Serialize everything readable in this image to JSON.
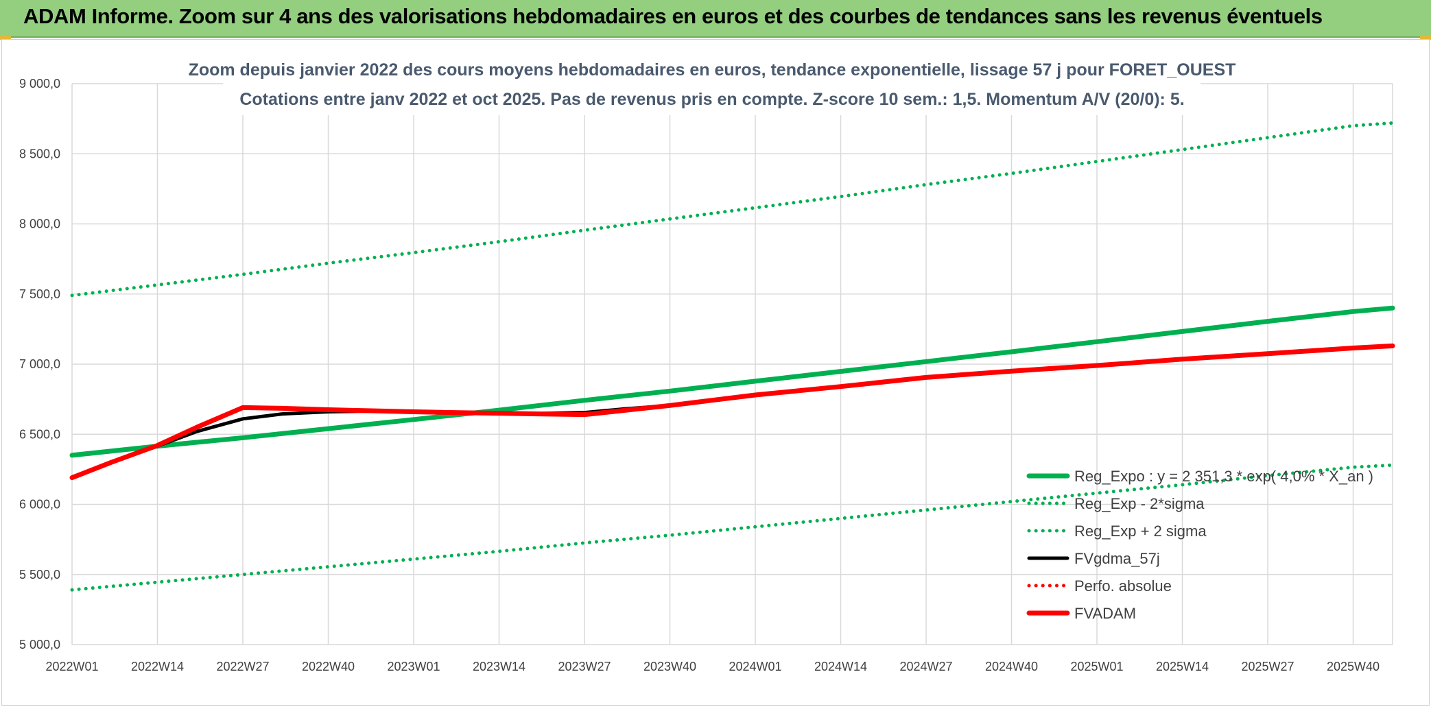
{
  "banner": {
    "title": "ADAM Informe. Zoom sur 4 ans des valorisations hebdomadaires en euros et des courbes de tendances sans les revenus éventuels"
  },
  "chart_data": {
    "type": "line",
    "title": "Zoom depuis janvier 2022 des cours moyens hebdomadaires en euros, tendance exponentielle, lissage 57 j pour FORET_OUEST",
    "subtitle": "Cotations entre janv 2022 et oct 2025. Pas de revenus pris en compte. Z-score 10 sem.: 1,5. Momentum A/V (20/0): 5.",
    "xlabel": "",
    "ylabel": "",
    "ylim": [
      5000,
      9000
    ],
    "y_ticks": [
      "5 000,0",
      "5 500,0",
      "6 000,0",
      "6 500,0",
      "7 000,0",
      "7 500,0",
      "8 000,0",
      "8 500,0",
      "9 000,0"
    ],
    "y_tick_values": [
      5000,
      5500,
      6000,
      6500,
      7000,
      7500,
      8000,
      8500,
      9000
    ],
    "categories": [
      "2022W01",
      "2022W14",
      "2022W27",
      "2022W40",
      "2023W01",
      "2023W14",
      "2023W27",
      "2023W40",
      "2024W01",
      "2024W14",
      "2024W27",
      "2024W40",
      "2025W01",
      "2025W14",
      "2025W27",
      "2025W40"
    ],
    "x_last": "2025W46",
    "grid": true,
    "legend_position": "bottom-right",
    "series": [
      {
        "name": "Reg_Expo : y = 2 351,3 * exp( 4,0% * X_an )",
        "color": "#00b050",
        "style": "solid-thick",
        "points": [
          [
            "2022W01",
            6350
          ],
          [
            "2022W14",
            6415
          ],
          [
            "2022W27",
            6475
          ],
          [
            "2022W40",
            6540
          ],
          [
            "2023W01",
            6605
          ],
          [
            "2023W14",
            6672
          ],
          [
            "2023W27",
            6742
          ],
          [
            "2023W40",
            6808
          ],
          [
            "2024W01",
            6878
          ],
          [
            "2024W14",
            6948
          ],
          [
            "2024W27",
            7018
          ],
          [
            "2024W40",
            7088
          ],
          [
            "2025W01",
            7160
          ],
          [
            "2025W14",
            7233
          ],
          [
            "2025W27",
            7305
          ],
          [
            "2025W40",
            7375
          ],
          [
            "2025W46",
            7400
          ]
        ]
      },
      {
        "name": "Reg_Exp - 2*sigma",
        "color": "#00b050",
        "style": "dotted",
        "points": [
          [
            "2022W01",
            5390
          ],
          [
            "2022W14",
            5445
          ],
          [
            "2022W27",
            5500
          ],
          [
            "2022W40",
            5555
          ],
          [
            "2023W01",
            5610
          ],
          [
            "2023W14",
            5665
          ],
          [
            "2023W27",
            5725
          ],
          [
            "2023W40",
            5780
          ],
          [
            "2024W01",
            5840
          ],
          [
            "2024W14",
            5900
          ],
          [
            "2024W27",
            5960
          ],
          [
            "2024W40",
            6020
          ],
          [
            "2025W01",
            6080
          ],
          [
            "2025W14",
            6140
          ],
          [
            "2025W27",
            6205
          ],
          [
            "2025W40",
            6265
          ],
          [
            "2025W46",
            6280
          ]
        ]
      },
      {
        "name": "Reg_Exp + 2 sigma",
        "color": "#00b050",
        "style": "dotted",
        "points": [
          [
            "2022W01",
            7490
          ],
          [
            "2022W14",
            7565
          ],
          [
            "2022W27",
            7640
          ],
          [
            "2022W40",
            7720
          ],
          [
            "2023W01",
            7795
          ],
          [
            "2023W14",
            7873
          ],
          [
            "2023W27",
            7955
          ],
          [
            "2023W40",
            8035
          ],
          [
            "2024W01",
            8115
          ],
          [
            "2024W14",
            8195
          ],
          [
            "2024W27",
            8280
          ],
          [
            "2024W40",
            8360
          ],
          [
            "2025W01",
            8445
          ],
          [
            "2025W14",
            8530
          ],
          [
            "2025W27",
            8615
          ],
          [
            "2025W40",
            8700
          ],
          [
            "2025W46",
            8720
          ]
        ]
      },
      {
        "name": "FVgdma_57j",
        "color": "#000000",
        "style": "solid",
        "points": [
          [
            "2022W01",
            6195
          ],
          [
            "2022W07",
            6300
          ],
          [
            "2022W14",
            6415
          ],
          [
            "2022W20",
            6520
          ],
          [
            "2022W27",
            6610
          ],
          [
            "2022W33",
            6645
          ],
          [
            "2022W40",
            6660
          ],
          [
            "2022W46",
            6665
          ],
          [
            "2023W01",
            6660
          ],
          [
            "2023W07",
            6655
          ],
          [
            "2023W14",
            6650
          ],
          [
            "2023W20",
            6648
          ],
          [
            "2023W27",
            6655
          ],
          [
            "2023W33",
            6680
          ],
          [
            "2023W40",
            6705
          ],
          [
            "2023W46",
            6740
          ]
        ]
      },
      {
        "name": "Perfo. absolue",
        "color": "#ff0000",
        "style": "dotted",
        "points": []
      },
      {
        "name": "FVADAM",
        "color": "#ff0000",
        "style": "solid-thick",
        "points": [
          [
            "2022W01",
            6190
          ],
          [
            "2022W07",
            6300
          ],
          [
            "2022W14",
            6420
          ],
          [
            "2022W20",
            6550
          ],
          [
            "2022W27",
            6690
          ],
          [
            "2022W33",
            6685
          ],
          [
            "2022W40",
            6675
          ],
          [
            "2022W46",
            6668
          ],
          [
            "2023W01",
            6660
          ],
          [
            "2023W07",
            6655
          ],
          [
            "2023W14",
            6650
          ],
          [
            "2023W20",
            6645
          ],
          [
            "2023W27",
            6640
          ],
          [
            "2023W33",
            6670
          ],
          [
            "2023W40",
            6705
          ],
          [
            "2023W46",
            6740
          ],
          [
            "2024W01",
            6780
          ],
          [
            "2024W14",
            6840
          ],
          [
            "2024W27",
            6905
          ],
          [
            "2024W40",
            6950
          ],
          [
            "2025W01",
            6990
          ],
          [
            "2025W14",
            7035
          ],
          [
            "2025W27",
            7075
          ],
          [
            "2025W40",
            7115
          ],
          [
            "2025W46",
            7130
          ]
        ]
      }
    ]
  }
}
